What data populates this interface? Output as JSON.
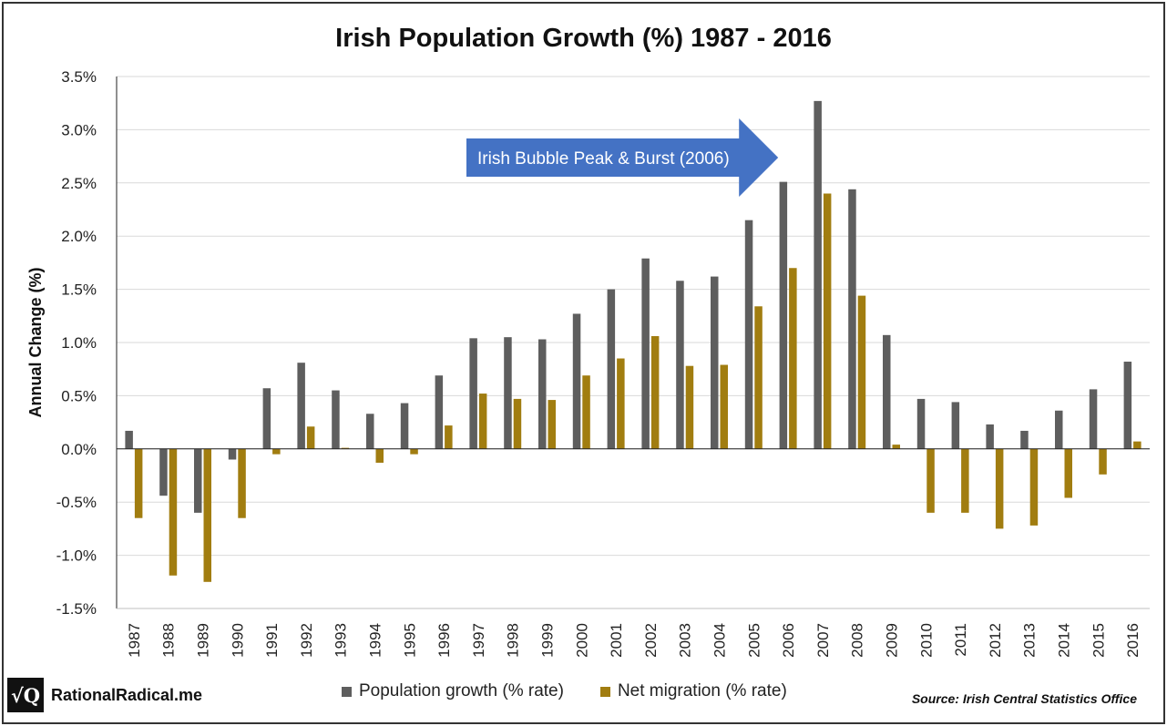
{
  "chart_data": {
    "type": "bar",
    "title": "Irish Population Growth (%) 1987 - 2016",
    "xlabel": "",
    "ylabel": "Annual Change (%)",
    "ylim": [
      -1.5,
      3.5
    ],
    "ytick_values": [
      -1.5,
      -1.0,
      -0.5,
      0.0,
      0.5,
      1.0,
      1.5,
      2.0,
      2.5,
      3.0,
      3.5
    ],
    "ytick_labels": [
      "-1.5%",
      "-1.0%",
      "-0.5%",
      "0.0%",
      "0.5%",
      "1.0%",
      "1.5%",
      "2.0%",
      "2.5%",
      "3.0%",
      "3.5%"
    ],
    "grid": true,
    "legend_position": "bottom",
    "categories": [
      "1987",
      "1988",
      "1989",
      "1990",
      "1991",
      "1992",
      "1993",
      "1994",
      "1995",
      "1996",
      "1997",
      "1998",
      "1999",
      "2000",
      "2001",
      "2002",
      "2003",
      "2004",
      "2005",
      "2006",
      "2007",
      "2008",
      "2009",
      "2010",
      "2011",
      "2012",
      "2013",
      "2014",
      "2015",
      "2016"
    ],
    "series": [
      {
        "name": "Population growth (% rate)",
        "color": "#5e5e5e",
        "values": [
          0.17,
          -0.44,
          -0.6,
          -0.1,
          0.57,
          0.81,
          0.55,
          0.33,
          0.43,
          0.69,
          1.04,
          1.05,
          1.03,
          1.27,
          1.5,
          1.79,
          1.58,
          1.62,
          2.15,
          2.51,
          3.27,
          2.44,
          1.07,
          0.47,
          0.44,
          0.23,
          0.17,
          0.36,
          0.56,
          0.82
        ]
      },
      {
        "name": "Net migration (% rate)",
        "color": "#a17d10",
        "values": [
          -0.65,
          -1.19,
          -1.25,
          -0.65,
          -0.05,
          0.21,
          0.01,
          -0.13,
          -0.05,
          0.22,
          0.52,
          0.47,
          0.46,
          0.69,
          0.85,
          1.06,
          0.78,
          0.79,
          1.34,
          1.7,
          2.4,
          1.44,
          0.04,
          -0.6,
          -0.6,
          -0.75,
          -0.72,
          -0.46,
          -0.24,
          0.07
        ]
      }
    ],
    "annotations": [
      {
        "text": "Irish Bubble Peak & Burst (2006)",
        "style": "arrow",
        "points_to": "2006",
        "color": "#4472c4"
      }
    ]
  },
  "footer": {
    "brand_logo": "√Q",
    "brand_name": "RationalRadical.me",
    "source": "Source: Irish Central Statistics Office"
  }
}
